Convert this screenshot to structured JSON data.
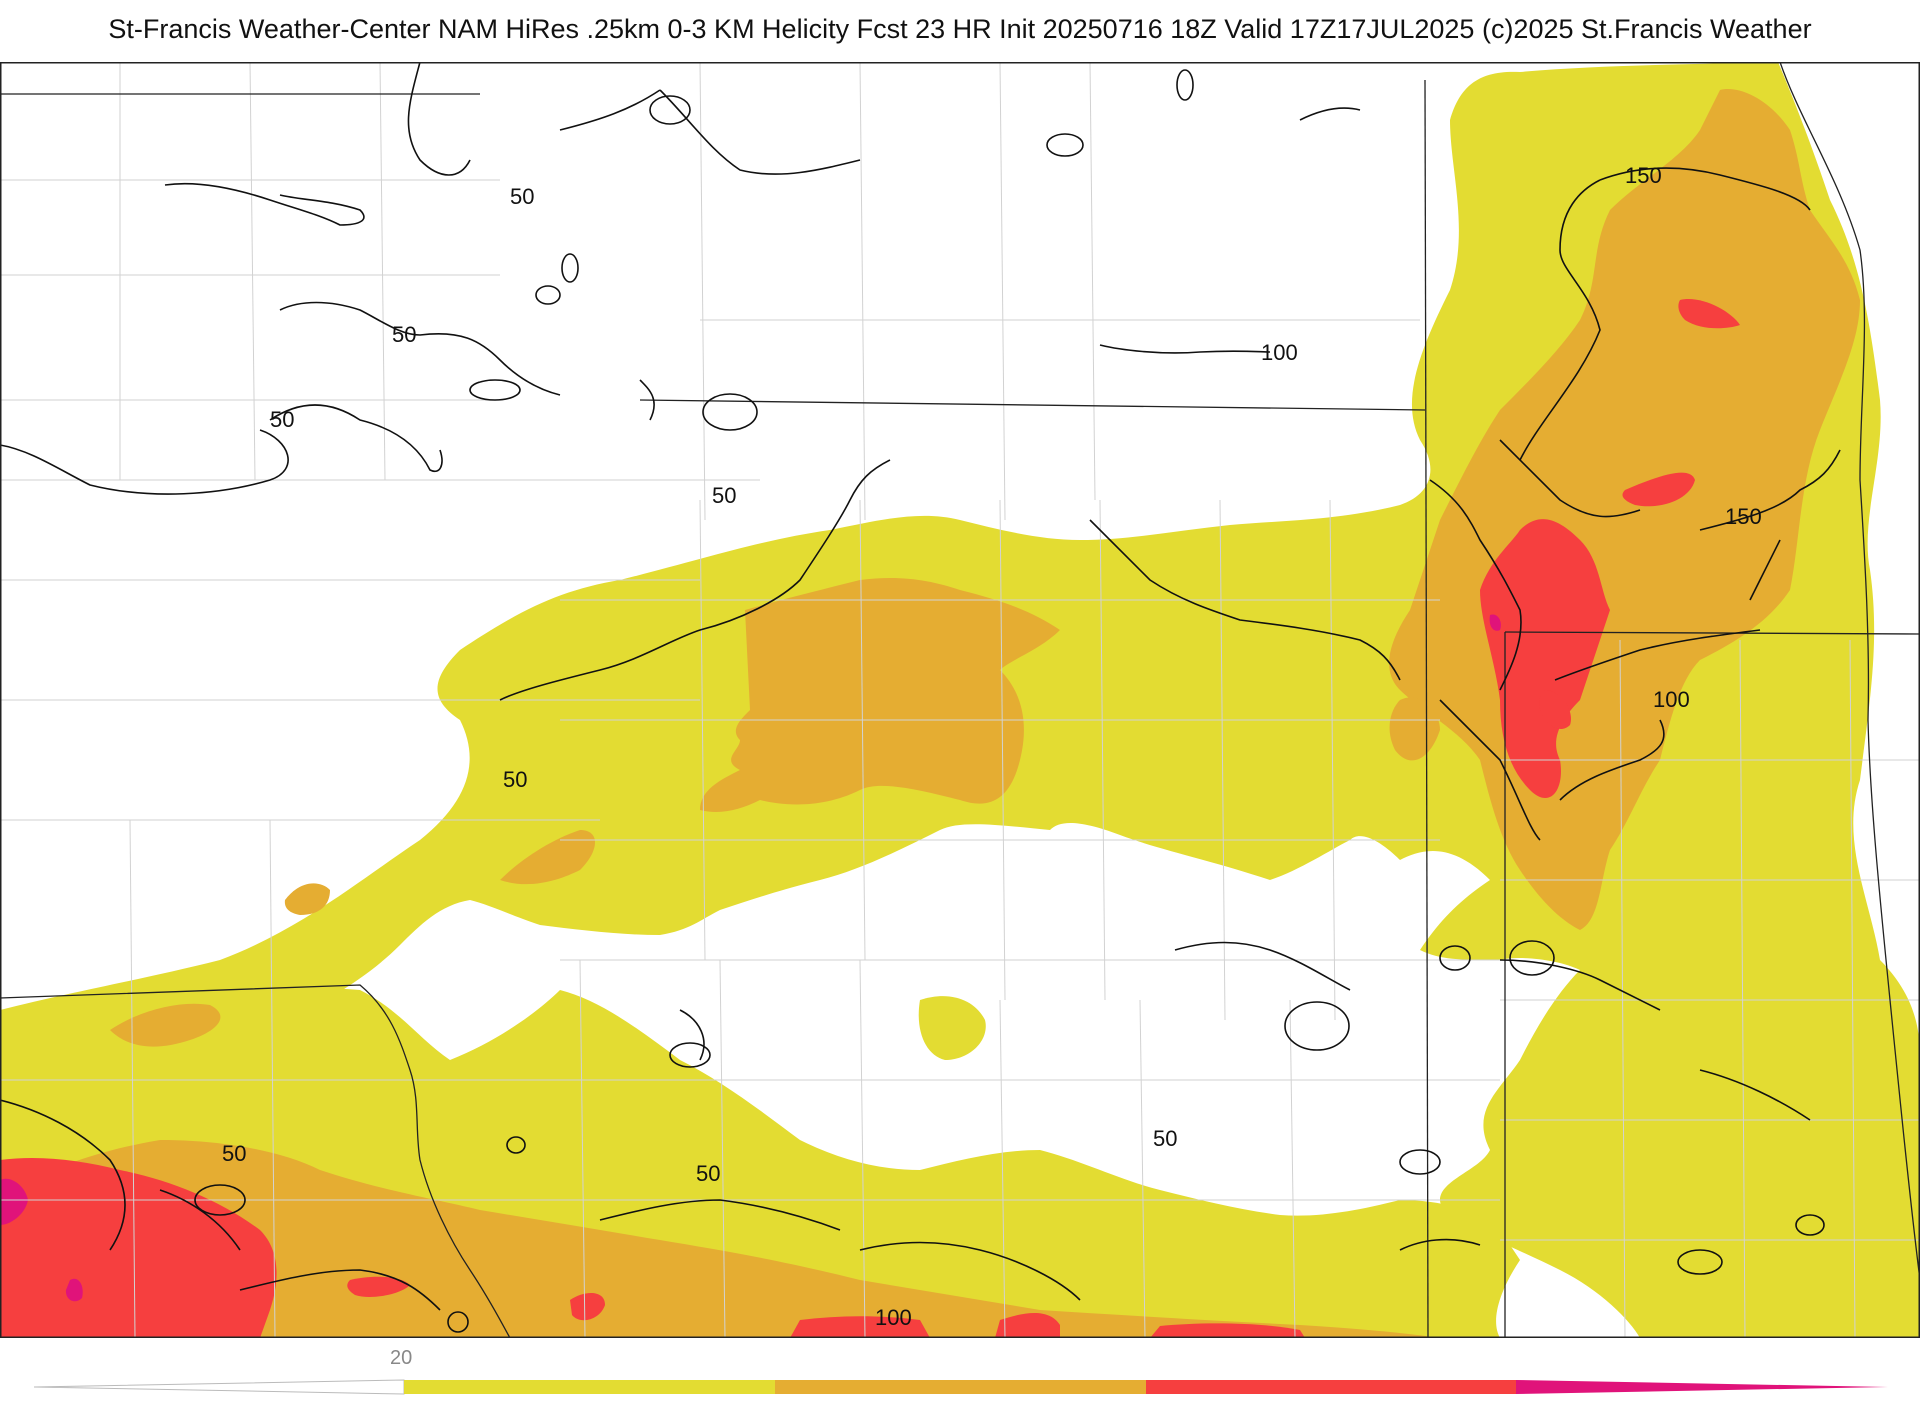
{
  "title": "St-Francis Weather-Center NAM HiRes .25km 0-3 KM Helicity Fcst 23 HR Init 20250716 18Z  Valid 17Z17JUL2025    (c)2025 St.Francis Weather",
  "field": {
    "colors": {
      "band_1": "#e3dc32",
      "band_2": "#e5ad32",
      "band_3": "#f63f3f",
      "band_4": "#e0137a"
    }
  },
  "contours": {
    "line_color": "#111111",
    "labels": [
      "50",
      "50",
      "50",
      "50",
      "50",
      "50",
      "50",
      "50",
      "100",
      "100",
      "100",
      "150",
      "150"
    ]
  },
  "colorbar": {
    "ticks": [
      "20"
    ],
    "colors": [
      "#e3dc32",
      "#e5ad32",
      "#f63f3f",
      "#e0137a"
    ]
  }
}
